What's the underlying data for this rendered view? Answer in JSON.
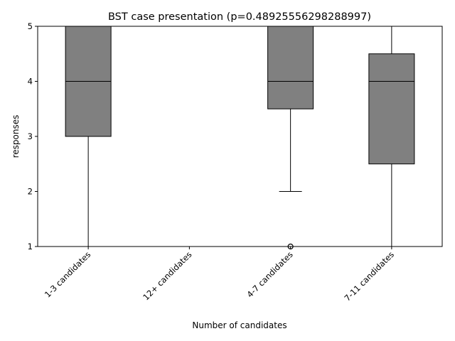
{
  "chart_data": {
    "type": "box",
    "title": "BST case presentation (p=0.48925556298288997)",
    "xlabel": "Number of candidates",
    "ylabel": "responses",
    "ylim": [
      1,
      5
    ],
    "yticks": [
      "1",
      "2",
      "3",
      "4",
      "5"
    ],
    "categories": [
      "1-3 candidates",
      "12+ candidates",
      "4-7 candidates",
      "7-11 candidates"
    ],
    "boxes": [
      {
        "whislo": 1,
        "q1": 3,
        "med": 4,
        "q3": 5,
        "whishi": 5,
        "fliers": []
      },
      {
        "whislo": 5,
        "q1": 5,
        "med": 5,
        "q3": 5,
        "whishi": 5,
        "fliers": []
      },
      {
        "whislo": 2,
        "q1": 3.5,
        "med": 4,
        "q3": 5,
        "whishi": 5,
        "fliers": [
          1
        ]
      },
      {
        "whislo": 1,
        "q1": 2.5,
        "med": 4,
        "q3": 4.5,
        "whishi": 5,
        "fliers": []
      }
    ],
    "box_color": "#808080",
    "line_color": "#000000",
    "grid": false,
    "legend": "none"
  }
}
